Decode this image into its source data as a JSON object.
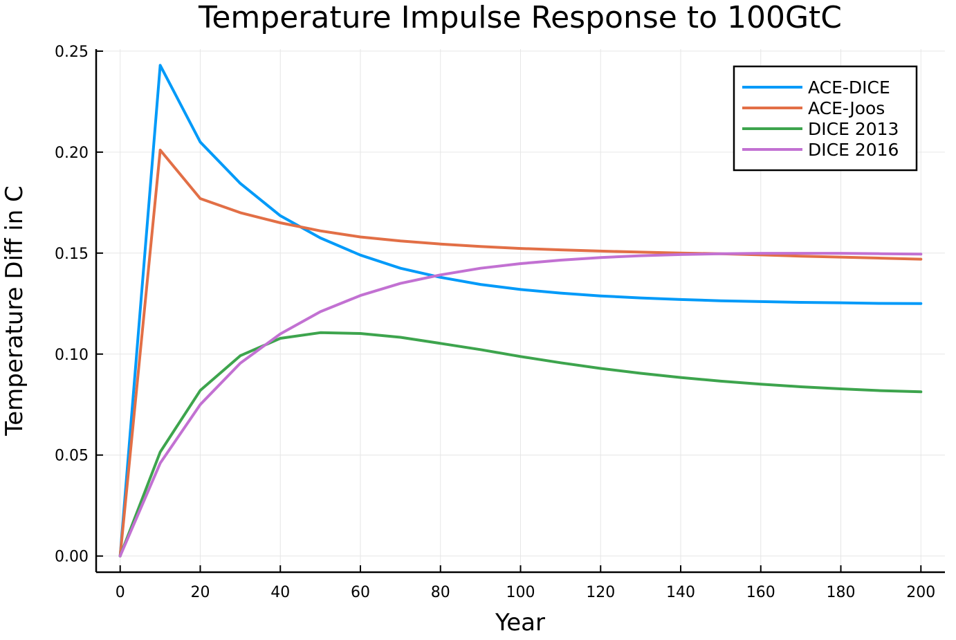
{
  "chart_data": {
    "type": "line",
    "title": "Temperature Impulse Response to 100GtC",
    "xlabel": "Year",
    "ylabel": "Temperature Diff in C",
    "xlim": [
      -6,
      206
    ],
    "ylim": [
      -0.008,
      0.251
    ],
    "xticks": [
      0,
      20,
      40,
      60,
      80,
      100,
      120,
      140,
      160,
      180,
      200
    ],
    "yticks": [
      0.0,
      0.05,
      0.1,
      0.15,
      0.2,
      0.25
    ],
    "ytick_labels": [
      "0.00",
      "0.05",
      "0.10",
      "0.15",
      "0.20",
      "0.25"
    ],
    "grid": true,
    "legend_position": "top-right",
    "x": [
      0,
      10,
      20,
      30,
      40,
      50,
      60,
      70,
      80,
      90,
      100,
      110,
      120,
      130,
      140,
      150,
      160,
      170,
      180,
      190,
      200
    ],
    "series": [
      {
        "name": "ACE-DICE",
        "color": "#009af9",
        "values": [
          0.0,
          0.243,
          0.205,
          0.1845,
          0.1685,
          0.1575,
          0.149,
          0.1425,
          0.138,
          0.1345,
          0.132,
          0.1302,
          0.1288,
          0.1278,
          0.127,
          0.1264,
          0.126,
          0.1256,
          0.1254,
          0.1251,
          0.125
        ]
      },
      {
        "name": "ACE-Joos",
        "color": "#e26f46",
        "values": [
          0.0,
          0.201,
          0.177,
          0.17,
          0.165,
          0.161,
          0.158,
          0.156,
          0.1545,
          0.1533,
          0.1523,
          0.1516,
          0.151,
          0.1505,
          0.15,
          0.1497,
          0.1491,
          0.1485,
          0.148,
          0.1475,
          0.147
        ]
      },
      {
        "name": "DICE 2013",
        "color": "#3da44d",
        "values": [
          0.0,
          0.0515,
          0.082,
          0.0992,
          0.1078,
          0.1106,
          0.1102,
          0.1083,
          0.1053,
          0.1022,
          0.0988,
          0.0957,
          0.0929,
          0.0905,
          0.0884,
          0.0866,
          0.0851,
          0.0838,
          0.0828,
          0.0819,
          0.0813
        ]
      },
      {
        "name": "DICE 2016",
        "color": "#c271d2",
        "values": [
          0.0,
          0.046,
          0.075,
          0.0955,
          0.11,
          0.121,
          0.129,
          0.135,
          0.1392,
          0.1425,
          0.1448,
          0.1465,
          0.1478,
          0.1487,
          0.1493,
          0.1497,
          0.1499,
          0.1499,
          0.1499,
          0.1497,
          0.1495
        ]
      }
    ]
  }
}
